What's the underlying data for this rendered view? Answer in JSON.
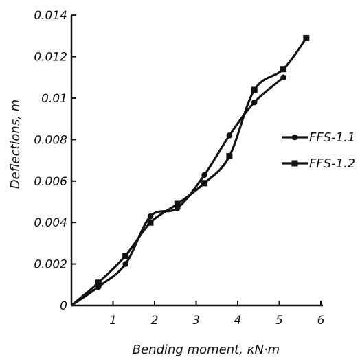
{
  "chart_data": {
    "type": "line",
    "xlabel": "Bending moment, кN·m",
    "ylabel": "Deflections, m",
    "xlim": [
      0,
      6
    ],
    "ylim": [
      0,
      0.014
    ],
    "x_ticks": [
      1,
      2,
      3,
      4,
      5,
      6
    ],
    "y_ticks": [
      "0",
      "0.002",
      "0.004",
      "0.006",
      "0.008",
      "0.01",
      "0.012",
      "0.014"
    ],
    "grid": false,
    "legend_position": "right",
    "series": [
      {
        "name": "FFS-1.1",
        "marker": "circle",
        "color": "#111111",
        "points": [
          [
            0,
            0
          ],
          [
            0.65,
            0.0009
          ],
          [
            1.3,
            0.002
          ],
          [
            1.9,
            0.0043
          ],
          [
            2.55,
            0.0047
          ],
          [
            3.2,
            0.0063
          ],
          [
            3.8,
            0.0082
          ],
          [
            4.4,
            0.0098
          ],
          [
            5.1,
            0.011
          ]
        ]
      },
      {
        "name": "FFS-1.2",
        "marker": "square",
        "color": "#111111",
        "points": [
          [
            0,
            0
          ],
          [
            0.65,
            0.0011
          ],
          [
            1.3,
            0.0024
          ],
          [
            1.9,
            0.004
          ],
          [
            2.55,
            0.0049
          ],
          [
            3.2,
            0.0059
          ],
          [
            3.8,
            0.0072
          ],
          [
            4.4,
            0.0104
          ],
          [
            5.1,
            0.0114
          ],
          [
            5.65,
            0.0129
          ]
        ]
      }
    ]
  }
}
